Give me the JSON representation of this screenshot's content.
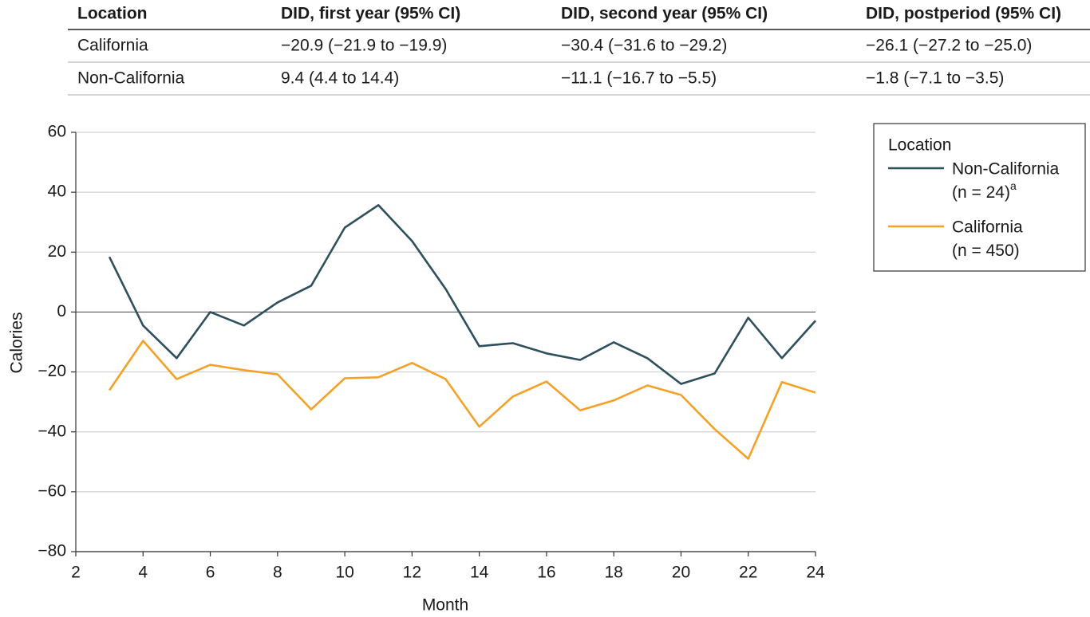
{
  "table": {
    "header": [
      "Location",
      "DID, first year (95% CI)",
      "DID, second year (95% CI)",
      "DID, postperiod (95% CI)"
    ],
    "rows": [
      [
        "California",
        "−20.9 (−21.9 to −19.9)",
        "−30.4 (−31.6 to −29.2)",
        "−26.1 (−27.2 to −25.0)"
      ],
      [
        "Non-California",
        "9.4 (4.4 to 14.4)",
        "−11.1 (−16.7 to −5.5)",
        "−1.8 (−7.1 to −3.5)"
      ]
    ]
  },
  "chart_data": {
    "type": "line",
    "xlabel": "Month",
    "ylabel": "Calories",
    "x": [
      3,
      4,
      5,
      6,
      7,
      8,
      9,
      10,
      11,
      12,
      13,
      14,
      15,
      16,
      17,
      18,
      19,
      20,
      21,
      22,
      23,
      24
    ],
    "series": [
      {
        "name": "Non-California",
        "sample": "(n = 24)",
        "footnote": "a",
        "color": "#2e4f5c",
        "values": [
          18.4,
          -4.5,
          -15.4,
          0,
          -4.5,
          3.2,
          8.8,
          28.2,
          35.7,
          23.7,
          7.7,
          -11.4,
          -10.4,
          -13.8,
          -16,
          -10.1,
          -15.4,
          -24,
          -20.5,
          -1.9,
          -15.4,
          -2.9
        ]
      },
      {
        "name": "California",
        "sample": "(n = 450)",
        "color": "#f4a128",
        "values": [
          -26.1,
          -9.6,
          -22.4,
          -17.6,
          -19.4,
          -20.8,
          -32.5,
          -22.1,
          -21.8,
          -17,
          -22.4,
          -38.3,
          -28.2,
          -23.2,
          -32.8,
          -29.5,
          -24.5,
          -27.7,
          -39.1,
          -49,
          -23.4,
          -26.9
        ]
      }
    ],
    "xlim": [
      2,
      24
    ],
    "xticks": [
      2,
      4,
      6,
      8,
      10,
      12,
      14,
      16,
      18,
      20,
      22,
      24
    ],
    "ylim": [
      -80,
      60
    ],
    "yticks": [
      {
        "value": -80,
        "label": "−80"
      },
      {
        "value": -60,
        "label": "−60"
      },
      {
        "value": -40,
        "label": "−40"
      },
      {
        "value": -20,
        "label": "−20"
      },
      0,
      20,
      40,
      60
    ],
    "grid": true,
    "legend": "right",
    "legend_title": "Location"
  }
}
